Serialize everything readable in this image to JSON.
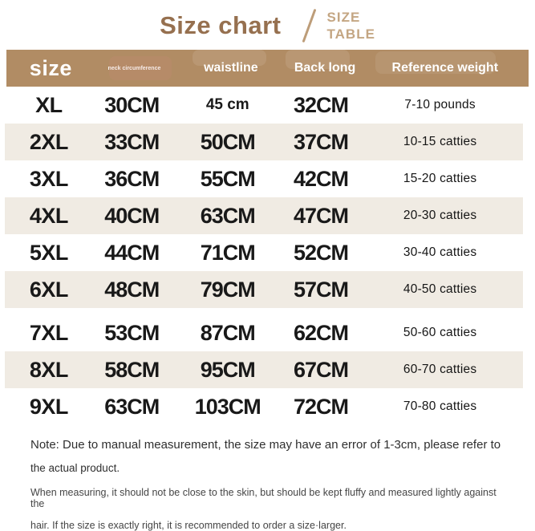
{
  "title": "Size chart",
  "subtitle": {
    "line1": "SIZE",
    "line2": "TABLE"
  },
  "colors": {
    "title_brown": "#96704f",
    "subtitle_tan": "#c4a683",
    "header_bg": "#b18c64",
    "header_text": "#ffffff",
    "alt_row_bg": "#f0ebe3",
    "body_text": "#191919"
  },
  "chart_data": {
    "type": "table",
    "title": "Size chart",
    "columns": [
      "size",
      "neck circumference",
      "waistline",
      "Back long",
      "Reference weight"
    ],
    "rows": [
      {
        "size": "XL",
        "neck": "30CM",
        "waist": "45 cm",
        "back": "32CM",
        "weight": "7-10 pounds",
        "waist_small": true
      },
      {
        "size": "2XL",
        "neck": "33CM",
        "waist": "50CM",
        "back": "37CM",
        "weight": "10-15 catties"
      },
      {
        "size": "3XL",
        "neck": "36CM",
        "waist": "55CM",
        "back": "42CM",
        "weight": "15-20 catties"
      },
      {
        "size": "4XL",
        "neck": "40CM",
        "waist": "63CM",
        "back": "47CM",
        "weight": "20-30 catties"
      },
      {
        "size": "5XL",
        "neck": "44CM",
        "waist": "71CM",
        "back": "52CM",
        "weight": "30-40 catties"
      },
      {
        "size": "6XL",
        "neck": "48CM",
        "waist": "79CM",
        "back": "57CM",
        "weight": "40-50 catties"
      },
      {
        "size": "7XL",
        "neck": "53CM",
        "waist": "87CM",
        "back": "62CM",
        "weight": "50-60 catties"
      },
      {
        "size": "8XL",
        "neck": "58CM",
        "waist": "95CM",
        "back": "67CM",
        "weight": "60-70 catties"
      },
      {
        "size": "9XL",
        "neck": "63CM",
        "waist": "103CM",
        "back": "72CM",
        "weight": "70-80 catties"
      }
    ]
  },
  "notes": {
    "primary_lines": [
      "Note: Due to manual measurement, the size may have an error of 1-3cm, please refer to",
      "the actual product."
    ],
    "secondary_lines": [
      "When measuring, it should not be close to the skin, but should be kept fluffy and measured lightly against the",
      "hair. If the size is exactly right, it is recommended to order a size·larger."
    ]
  }
}
